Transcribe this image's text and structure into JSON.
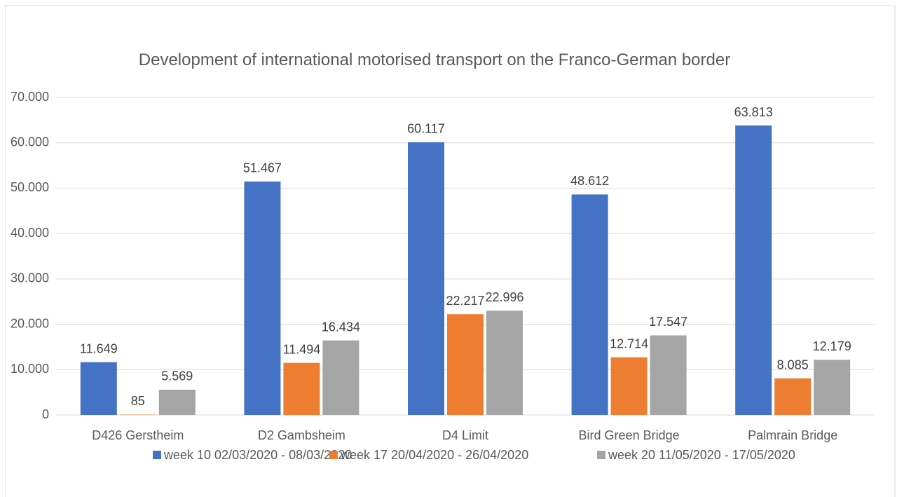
{
  "chart_data": {
    "type": "bar",
    "title": "Development of international motorised transport on the Franco-German border",
    "categories": [
      "D426 Gerstheim",
      "D2 Gambsheim",
      "D4 Limit",
      "Bird Green Bridge",
      "Palmrain Bridge"
    ],
    "series": [
      {
        "name": "week 10 02/03/2020 - 08/03/2020",
        "color": "#4472c4",
        "values": [
          11649,
          51467,
          60117,
          48612,
          63813
        ],
        "value_labels": [
          "11.649",
          "51.467",
          "60.117",
          "48.612",
          "63.813"
        ]
      },
      {
        "name": "week 17 20/04/2020 - 26/04/2020",
        "color": "#ed7d31",
        "values": [
          85,
          11494,
          22217,
          12714,
          8085
        ],
        "value_labels": [
          "85",
          "11.494",
          "22.217",
          "12.714",
          "8.085"
        ]
      },
      {
        "name": "week 20 11/05/2020 - 17/05/2020",
        "color": "#a5a5a5",
        "values": [
          5569,
          16434,
          22996,
          17547,
          12179
        ],
        "value_labels": [
          "5.569",
          "16.434",
          "22.996",
          "17.547",
          "12.179"
        ]
      }
    ],
    "ylim": [
      0,
      70000
    ],
    "yticks": [
      0,
      {
        "value": 10000,
        "label": "10.000"
      },
      {
        "value": 20000,
        "label": "20.000"
      },
      {
        "value": 30000,
        "label": "30.000"
      },
      {
        "value": 40000,
        "label": "40.000"
      },
      {
        "value": 50000,
        "label": "50.000"
      },
      {
        "value": 60000,
        "label": "60.000"
      },
      {
        "value": 70000,
        "label": "70.000"
      }
    ],
    "grid": true,
    "legend": "bottom"
  }
}
